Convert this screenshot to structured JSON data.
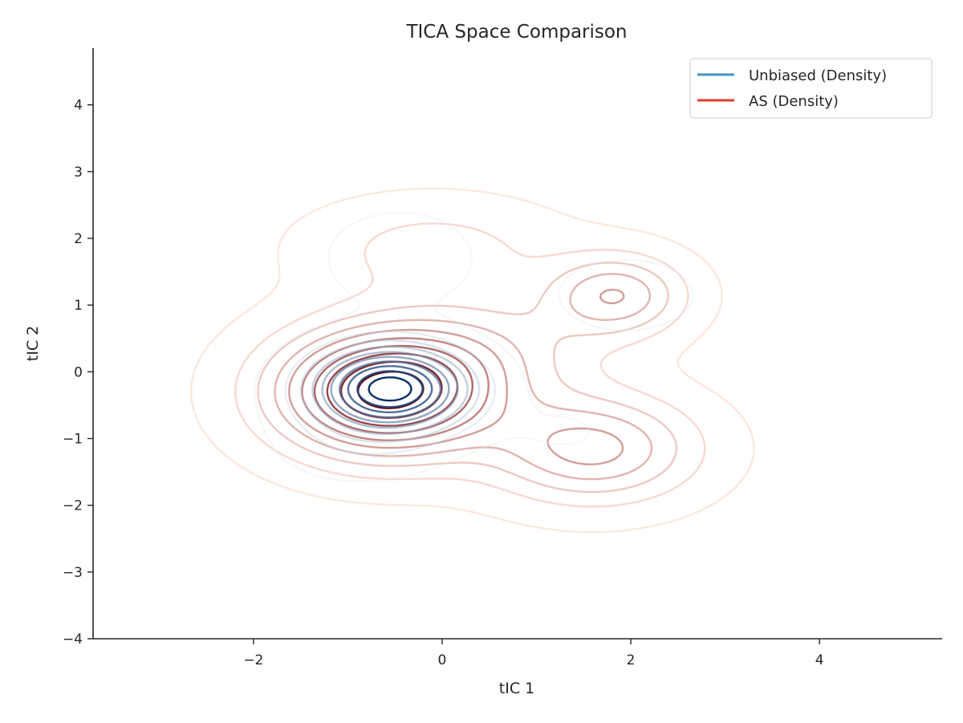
{
  "chart_data": {
    "type": "contour",
    "title": "TICA Space Comparison",
    "xlabel": "tIC 1",
    "ylabel": "tIC 2",
    "xlim": [
      -3.7,
      5.3
    ],
    "ylim": [
      -4.0,
      4.85
    ],
    "xticks": [
      -2,
      0,
      2,
      4
    ],
    "yticks": [
      -4,
      -3,
      -2,
      -1,
      0,
      1,
      2,
      3,
      4
    ],
    "grid": false,
    "legend": {
      "placement": "top-right",
      "entries": [
        "Unbiased (Density)",
        "AS (Density)"
      ]
    },
    "colors": {
      "unbiased": "#4292c6",
      "as": "#e03b2f",
      "axis": "#262626"
    },
    "series": [
      {
        "name": "Unbiased (Density)",
        "colormap": "Blues",
        "levels": 10,
        "modes": [
          {
            "center": [
              -0.55,
              -0.25
            ],
            "weight": 1.0,
            "sigma": [
              0.55,
              0.42
            ]
          },
          {
            "center": [
              -0.45,
              1.7
            ],
            "weight": 0.09,
            "sigma": [
              0.55,
              0.5
            ]
          },
          {
            "center": [
              1.95,
              1.15
            ],
            "weight": 0.07,
            "sigma": [
              0.6,
              0.45
            ]
          },
          {
            "center": [
              1.3,
              -0.9
            ],
            "weight": 0.04,
            "sigma": [
              0.5,
              0.35
            ]
          },
          {
            "center": [
              -0.9,
              -1.1
            ],
            "weight": 0.08,
            "sigma": [
              0.6,
              0.4
            ]
          }
        ]
      },
      {
        "name": "AS (Density)",
        "colormap": "Reds",
        "levels": 10,
        "modes": [
          {
            "center": [
              -0.6,
              -0.3
            ],
            "weight": 1.0,
            "sigma": [
              0.8,
              0.65
            ]
          },
          {
            "center": [
              1.85,
              1.15
            ],
            "weight": 0.42,
            "sigma": [
              0.5,
              0.42
            ]
          },
          {
            "center": [
              1.6,
              -1.15
            ],
            "weight": 0.48,
            "sigma": [
              0.75,
              0.55
            ]
          },
          {
            "center": [
              -0.1,
              1.85
            ],
            "weight": 0.18,
            "sigma": [
              0.9,
              0.5
            ]
          },
          {
            "center": [
              0.6,
              0.4
            ],
            "weight": 0.2,
            "sigma": [
              0.8,
              0.6
            ]
          }
        ]
      }
    ]
  }
}
